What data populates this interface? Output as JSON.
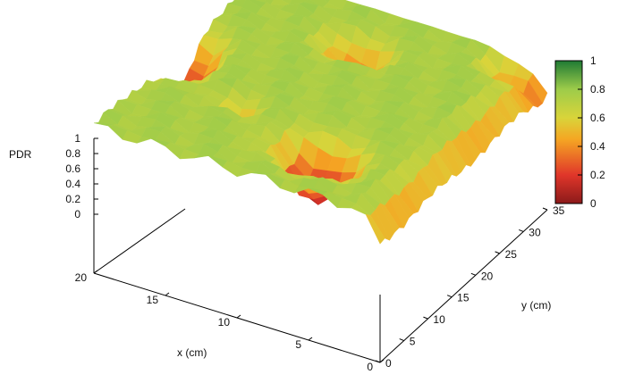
{
  "chart_data": {
    "type": "surface",
    "title": "",
    "zlabel": "PDR",
    "xlabel": "x (cm)",
    "ylabel": "y (cm)",
    "x_ticks": [
      "0",
      "5",
      "10",
      "15",
      "20"
    ],
    "y_ticks": [
      "0",
      "5",
      "10",
      "15",
      "20",
      "25",
      "30",
      "35"
    ],
    "z_ticks": [
      "0",
      "0.2",
      "0.4",
      "0.6",
      "0.8",
      "1"
    ],
    "colorbar_ticks": [
      "0",
      "0.2",
      "0.4",
      "0.6",
      "0.8",
      "1"
    ],
    "xlim": [
      0,
      20
    ],
    "ylim": [
      0,
      35
    ],
    "zlim": [
      0,
      1
    ],
    "colorbar_colors": [
      "#8b1a1a",
      "#e0362a",
      "#f5a623",
      "#d9d43a",
      "#9dcc4a",
      "#1e7a34"
    ],
    "note_surface": "PDR surface over x in [0,20] cm and y in [0,35] cm; high plateau ~0.75 with deep troughs near (x≈7, y≈8), (x≈20, y≈18), (x≈11, y≈28) and along edges."
  }
}
